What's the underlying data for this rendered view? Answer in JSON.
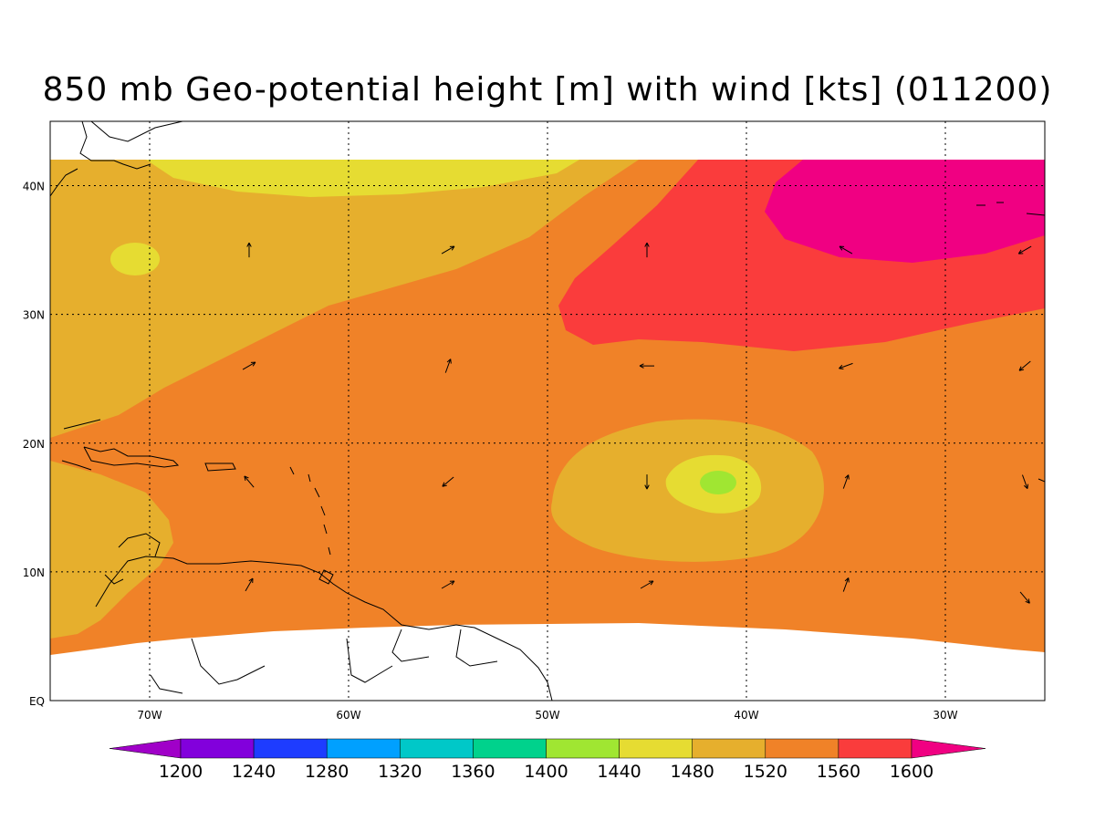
{
  "title": "850 mb Geo-potential height [m] with wind [kts] (011200)",
  "map": {
    "lon_range": [
      -75,
      -25
    ],
    "lat_range": [
      0,
      45
    ],
    "lon_ticks": [
      {
        "value": -70,
        "label": "70W"
      },
      {
        "value": -60,
        "label": "60W"
      },
      {
        "value": -50,
        "label": "50W"
      },
      {
        "value": -40,
        "label": "40W"
      },
      {
        "value": -30,
        "label": "30W"
      }
    ],
    "lat_ticks": [
      {
        "value": 0,
        "label": "EQ"
      },
      {
        "value": 10,
        "label": "10N"
      },
      {
        "value": 20,
        "label": "20N"
      },
      {
        "value": 30,
        "label": "30N"
      },
      {
        "value": 40,
        "label": "40N"
      }
    ],
    "grid": "dotted",
    "data_lat_max": 42
  },
  "colorbar": {
    "levels": [
      1200,
      1240,
      1280,
      1320,
      1360,
      1400,
      1440,
      1480,
      1520,
      1560,
      1600
    ],
    "labels": [
      "1200",
      "1240",
      "1280",
      "1320",
      "1360",
      "1400",
      "1440",
      "1480",
      "1520",
      "1560",
      "1600"
    ],
    "colors": [
      "#a000c8",
      "#8200dc",
      "#1e3cff",
      "#00a0ff",
      "#00c8c8",
      "#00d28c",
      "#a0e632",
      "#e6dc32",
      "#e6af2d",
      "#f08228",
      "#fa3c3c",
      "#f00082"
    ]
  },
  "wind_vectors": [
    {
      "lon": -65,
      "lat": 35,
      "dir": 0
    },
    {
      "lon": -55,
      "lat": 35,
      "dir": 60
    },
    {
      "lon": -45,
      "lat": 35,
      "dir": 0
    },
    {
      "lon": -35,
      "lat": 35,
      "dir": 300
    },
    {
      "lon": -26,
      "lat": 35,
      "dir": 240
    },
    {
      "lon": -65,
      "lat": 26,
      "dir": 60
    },
    {
      "lon": -55,
      "lat": 26,
      "dir": 20
    },
    {
      "lon": -45,
      "lat": 26,
      "dir": 270
    },
    {
      "lon": -35,
      "lat": 26,
      "dir": 250
    },
    {
      "lon": -26,
      "lat": 26,
      "dir": 230
    },
    {
      "lon": -65,
      "lat": 17,
      "dir": 320
    },
    {
      "lon": -55,
      "lat": 17,
      "dir": 230
    },
    {
      "lon": -45,
      "lat": 17,
      "dir": 180
    },
    {
      "lon": -35,
      "lat": 17,
      "dir": 20
    },
    {
      "lon": -26,
      "lat": 17,
      "dir": 160
    },
    {
      "lon": -65,
      "lat": 9,
      "dir": 30
    },
    {
      "lon": -55,
      "lat": 9,
      "dir": 60
    },
    {
      "lon": -45,
      "lat": 9,
      "dir": 60
    },
    {
      "lon": -35,
      "lat": 9,
      "dir": 20
    },
    {
      "lon": -26,
      "lat": 8,
      "dir": 140
    }
  ]
}
